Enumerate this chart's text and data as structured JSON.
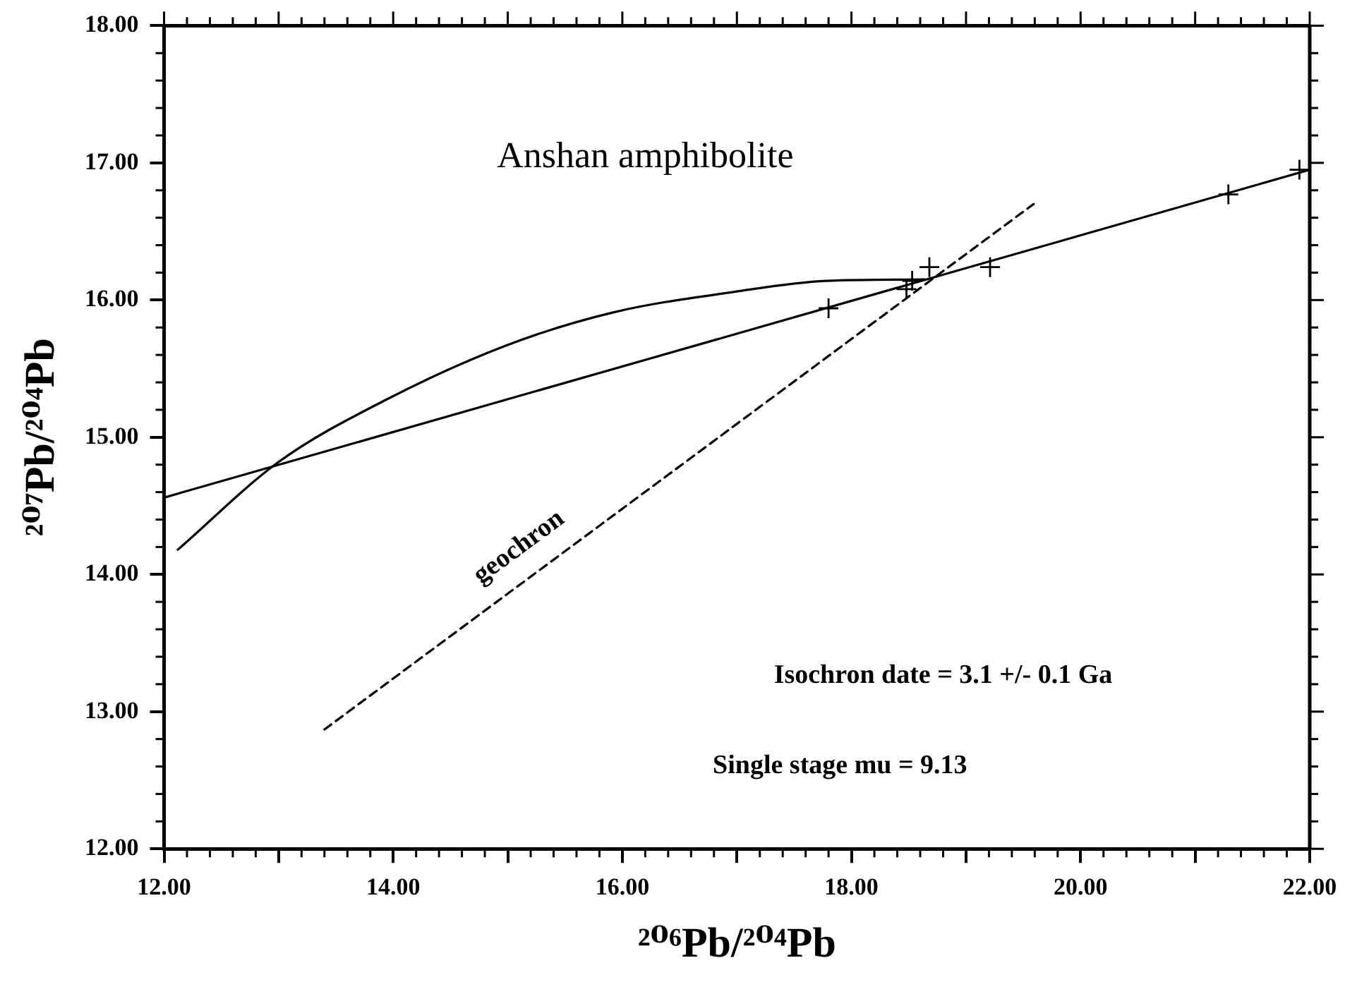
{
  "chart_data": {
    "type": "scatter",
    "xlabel": "²⁰⁶Pb/²⁰⁴Pb",
    "ylabel": "²⁰⁷Pb/²⁰⁴Pb",
    "xlim": [
      12,
      22
    ],
    "ylim": [
      12,
      18
    ],
    "xticks": [
      {
        "value": 12,
        "label": "12.00"
      },
      {
        "value": 13,
        "label": null
      },
      {
        "value": 14,
        "label": "14.00"
      },
      {
        "value": 15,
        "label": null
      },
      {
        "value": 16,
        "label": "16.00"
      },
      {
        "value": 17,
        "label": null
      },
      {
        "value": 18,
        "label": "18.00"
      },
      {
        "value": 19,
        "label": null
      },
      {
        "value": 20,
        "label": "20.00"
      },
      {
        "value": 21,
        "label": null
      },
      {
        "value": 22,
        "label": "22.00"
      }
    ],
    "yticks": [
      {
        "value": 12,
        "label": "12.00"
      },
      {
        "value": 13,
        "label": "13.00"
      },
      {
        "value": 14,
        "label": "14.00"
      },
      {
        "value": 15,
        "label": "15.00"
      },
      {
        "value": 16,
        "label": "16.00"
      },
      {
        "value": 17,
        "label": "17.00"
      },
      {
        "value": 18,
        "label": "18.00"
      }
    ],
    "grid": false,
    "legend": false,
    "series": [
      {
        "marker": "cross",
        "color": "#000000",
        "x": [
          17.8,
          18.48,
          18.53,
          18.68,
          19.21,
          21.29,
          21.91
        ],
        "values": [
          15.94,
          16.08,
          16.14,
          16.24,
          16.24,
          16.77,
          16.95
        ]
      },
      {
        "type": "line",
        "marker": "none",
        "line_style": "solid",
        "color": "#000000",
        "x": [
          12,
          22
        ],
        "values": [
          14.56,
          16.95
        ]
      },
      {
        "type": "line",
        "marker": "none",
        "line_style": "dashed",
        "color": "#000000",
        "name": "geochron",
        "x": [
          13.4,
          19.59
        ],
        "values": [
          12.87,
          16.7
        ]
      },
      {
        "type": "line",
        "marker": "none",
        "line_style": "solid",
        "color": "#000000",
        "x": [
          12.12,
          13,
          13.93,
          14.99,
          15.92,
          16.98,
          17.78,
          18.64
        ],
        "values": [
          14.18,
          14.82,
          15.27,
          15.67,
          15.91,
          16.06,
          16.14,
          16.15
        ]
      }
    ],
    "annotations": [
      "Anshan amphibolite",
      "Isochron date = 3.1 +/- 0.1 Ga",
      "Single stage mu = 9.13"
    ]
  }
}
